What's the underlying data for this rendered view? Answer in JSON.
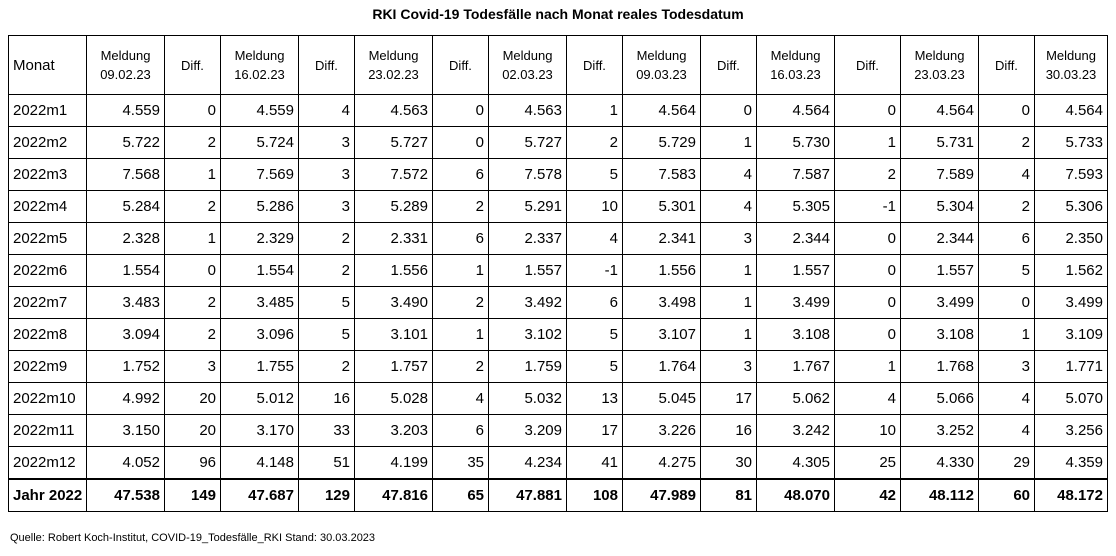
{
  "title": "RKI Covid-19 Todesfälle nach Monat reales Todesdatum",
  "headers": [
    {
      "l1": "Monat",
      "l2": ""
    },
    {
      "l1": "Meldung",
      "l2": "09.02.23"
    },
    {
      "l1": "Diff.",
      "l2": ""
    },
    {
      "l1": "Meldung",
      "l2": "16.02.23"
    },
    {
      "l1": "Diff.",
      "l2": ""
    },
    {
      "l1": "Meldung",
      "l2": "23.02.23"
    },
    {
      "l1": "Diff.",
      "l2": ""
    },
    {
      "l1": "Meldung",
      "l2": "02.03.23"
    },
    {
      "l1": "Diff.",
      "l2": ""
    },
    {
      "l1": "Meldung",
      "l2": "09.03.23"
    },
    {
      "l1": "Diff.",
      "l2": ""
    },
    {
      "l1": "Meldung",
      "l2": "16.03.23"
    },
    {
      "l1": "Diff.",
      "l2": ""
    },
    {
      "l1": "Meldung",
      "l2": "23.03.23"
    },
    {
      "l1": "Diff.",
      "l2": ""
    },
    {
      "l1": "Meldung",
      "l2": "30.03.23"
    }
  ],
  "rows": [
    [
      "2022m1",
      "4.559",
      "0",
      "4.559",
      "4",
      "4.563",
      "0",
      "4.563",
      "1",
      "4.564",
      "0",
      "4.564",
      "0",
      "4.564",
      "0",
      "4.564"
    ],
    [
      "2022m2",
      "5.722",
      "2",
      "5.724",
      "3",
      "5.727",
      "0",
      "5.727",
      "2",
      "5.729",
      "1",
      "5.730",
      "1",
      "5.731",
      "2",
      "5.733"
    ],
    [
      "2022m3",
      "7.568",
      "1",
      "7.569",
      "3",
      "7.572",
      "6",
      "7.578",
      "5",
      "7.583",
      "4",
      "7.587",
      "2",
      "7.589",
      "4",
      "7.593"
    ],
    [
      "2022m4",
      "5.284",
      "2",
      "5.286",
      "3",
      "5.289",
      "2",
      "5.291",
      "10",
      "5.301",
      "4",
      "5.305",
      "-1",
      "5.304",
      "2",
      "5.306"
    ],
    [
      "2022m5",
      "2.328",
      "1",
      "2.329",
      "2",
      "2.331",
      "6",
      "2.337",
      "4",
      "2.341",
      "3",
      "2.344",
      "0",
      "2.344",
      "6",
      "2.350"
    ],
    [
      "2022m6",
      "1.554",
      "0",
      "1.554",
      "2",
      "1.556",
      "1",
      "1.557",
      "-1",
      "1.556",
      "1",
      "1.557",
      "0",
      "1.557",
      "5",
      "1.562"
    ],
    [
      "2022m7",
      "3.483",
      "2",
      "3.485",
      "5",
      "3.490",
      "2",
      "3.492",
      "6",
      "3.498",
      "1",
      "3.499",
      "0",
      "3.499",
      "0",
      "3.499"
    ],
    [
      "2022m8",
      "3.094",
      "2",
      "3.096",
      "5",
      "3.101",
      "1",
      "3.102",
      "5",
      "3.107",
      "1",
      "3.108",
      "0",
      "3.108",
      "1",
      "3.109"
    ],
    [
      "2022m9",
      "1.752",
      "3",
      "1.755",
      "2",
      "1.757",
      "2",
      "1.759",
      "5",
      "1.764",
      "3",
      "1.767",
      "1",
      "1.768",
      "3",
      "1.771"
    ],
    [
      "2022m10",
      "4.992",
      "20",
      "5.012",
      "16",
      "5.028",
      "4",
      "5.032",
      "13",
      "5.045",
      "17",
      "5.062",
      "4",
      "5.066",
      "4",
      "5.070"
    ],
    [
      "2022m11",
      "3.150",
      "20",
      "3.170",
      "33",
      "3.203",
      "6",
      "3.209",
      "17",
      "3.226",
      "16",
      "3.242",
      "10",
      "3.252",
      "4",
      "3.256"
    ],
    [
      "2022m12",
      "4.052",
      "96",
      "4.148",
      "51",
      "4.199",
      "35",
      "4.234",
      "41",
      "4.275",
      "30",
      "4.305",
      "25",
      "4.330",
      "29",
      "4.359"
    ]
  ],
  "total": [
    "Jahr 2022",
    "47.538",
    "149",
    "47.687",
    "129",
    "47.816",
    "65",
    "47.881",
    "108",
    "47.989",
    "81",
    "48.070",
    "42",
    "48.112",
    "60",
    "48.172"
  ],
  "source": "Quelle: Robert Koch-Institut, COVID-19_Todesfälle_RKI Stand: 30.03.2023"
}
